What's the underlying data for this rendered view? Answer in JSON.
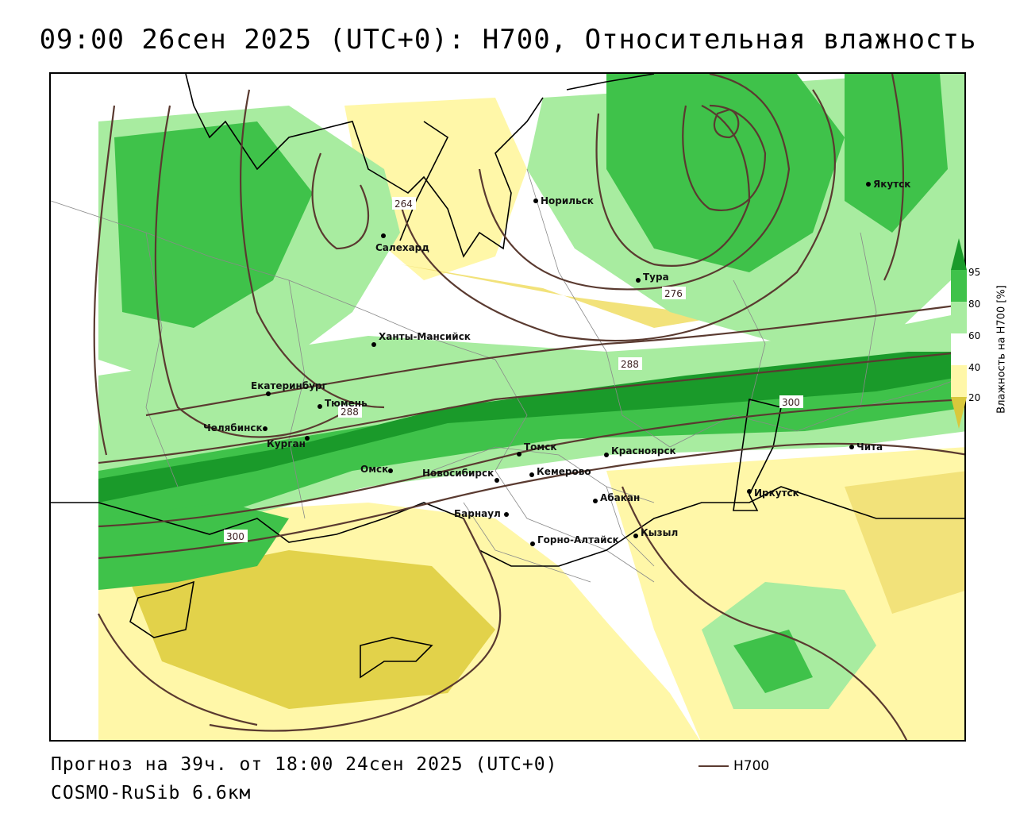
{
  "title": "09:00 26сен 2025 (UTC+0): H700, Относительная влажность",
  "forecast_line": "Прогноз на 39ч. от 18:00 24сен 2025 (UTC+0)",
  "model_line": "COSMO-RuSib 6.6км",
  "legend": {
    "label": "H700",
    "color": "#5a3a30"
  },
  "colorbar": {
    "title": "Влажность на H700 [%]",
    "ticks": [
      "95",
      "80",
      "60",
      "40",
      "20"
    ],
    "colors": [
      "#1a9a2a",
      "#3fc24a",
      "#a8eca0",
      "#ffffff",
      "#fff7a8",
      "#d9c83c"
    ]
  },
  "isoline_labels": [
    "264",
    "276",
    "288",
    "288",
    "300",
    "300"
  ],
  "cities": [
    "Норильск",
    "Якутск",
    "Салехард",
    "Тура",
    "Ханты-Мансийск",
    "Екатеринбург",
    "Тюмень",
    "Челябинск",
    "Курган",
    "Омск",
    "Новосибирск",
    "Томск",
    "Кемерово",
    "Красноярск",
    "Абакан",
    "Барнаул",
    "Горно-Алтайск",
    "Кызыл",
    "Иркутск",
    "Чита"
  ]
}
